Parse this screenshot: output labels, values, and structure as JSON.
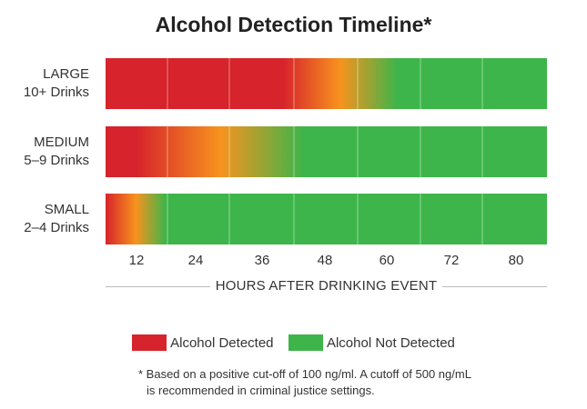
{
  "chart_data": {
    "type": "bar",
    "title": "Alcohol Detection Timeline*",
    "xlabel": "HOURS AFTER DRINKING EVENT",
    "x_ticks": [
      "12",
      "24",
      "36",
      "48",
      "60",
      "72",
      "80"
    ],
    "categories": [
      {
        "name": "LARGE",
        "sub": "10+ Drinks",
        "detected_until_hours": 40,
        "fade_end_hours": 62
      },
      {
        "name": "MEDIUM",
        "sub": "5–9 Drinks",
        "detected_until_hours": 12,
        "fade_end_hours": 44
      },
      {
        "name": "SMALL",
        "sub": "2–4 Drinks",
        "detected_until_hours": 0,
        "fade_end_hours": 18
      }
    ],
    "legend": [
      {
        "label": "Alcohol Detected",
        "color": "#d7232b"
      },
      {
        "label": "Alcohol Not Detected",
        "color": "#3db54a"
      }
    ],
    "colors": {
      "detected": "#d7232b",
      "transition": "#f7931e",
      "not_detected": "#3db54a"
    },
    "footnote_lines": [
      "* Based on a positive cut-off of 100 ng/ml. A cutoff of 500 ng/mL",
      "is recommended in criminal justice settings."
    ]
  }
}
